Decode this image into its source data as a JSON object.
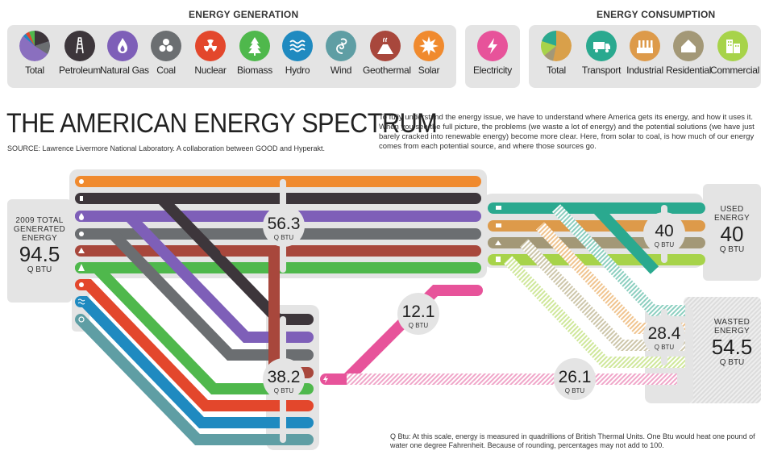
{
  "generation_panel": {
    "title": "ENERGY GENERATION",
    "items": [
      {
        "label": "Total",
        "icon": "pie-chart-icon",
        "color": "#8a6fbf"
      },
      {
        "label": "Petroleum",
        "icon": "oil-derrick-icon",
        "color": "#3d363b"
      },
      {
        "label": "Natural Gas",
        "icon": "gas-flame-icon",
        "color": "#7e5fb8"
      },
      {
        "label": "Coal",
        "icon": "coal-icon",
        "color": "#6b6e71"
      },
      {
        "label": "Nuclear",
        "icon": "radiation-icon",
        "color": "#e3472c"
      },
      {
        "label": "Biomass",
        "icon": "tree-icon",
        "color": "#4fb84c"
      },
      {
        "label": "Hydro",
        "icon": "waves-icon",
        "color": "#1f8ac0"
      },
      {
        "label": "Wind",
        "icon": "wind-swirl-icon",
        "color": "#5f9ea4"
      },
      {
        "label": "Geothermal",
        "icon": "volcano-icon",
        "color": "#a8473c"
      },
      {
        "label": "Solar",
        "icon": "sun-icon",
        "color": "#f08a2e"
      }
    ]
  },
  "electricity_panel": {
    "items": [
      {
        "label": "Electricity",
        "icon": "lightning-icon",
        "color": "#e7539a"
      }
    ]
  },
  "consumption_panel": {
    "title": "ENERGY CONSUMPTION",
    "items": [
      {
        "label": "Total",
        "icon": "pie-chart-icon",
        "color": "#d9a04a"
      },
      {
        "label": "Transport",
        "icon": "truck-icon",
        "color": "#2aa98f"
      },
      {
        "label": "Industrial",
        "icon": "factory-icon",
        "color": "#dd9a4a"
      },
      {
        "label": "Residential",
        "icon": "house-icon",
        "color": "#a39877"
      },
      {
        "label": "Commercial",
        "icon": "office-building-icon",
        "color": "#a7d34a"
      }
    ]
  },
  "title": "THE AMERICAN ENERGY SPECTRUM",
  "source": "SOURCE: Lawrence Livermore National Laboratory. A collaboration between GOOD and Hyperakt.",
  "intro": "To fully understand the energy issue, we have to understand where America gets its energy, and how it uses it. When you see the full picture, the problems (we waste a lot of energy) and the potential solutions (we have just barely cracked into renewable energy) become more clear. Here, from solar to coal, is how much of our energy comes from each potential source, and where those sources go.",
  "total_generated": {
    "label_line1": "2009 TOTAL",
    "label_line2": "GENERATED",
    "label_line3": "ENERGY",
    "value": "94.5",
    "unit": "Q BTU"
  },
  "used": {
    "label_line1": "USED",
    "label_line2": "ENERGY",
    "value": "40",
    "unit": "Q BTU"
  },
  "wasted": {
    "label_line1": "WASTED",
    "label_line2": "ENERGY",
    "value": "54.5",
    "unit": "Q BTU"
  },
  "bubbles": [
    {
      "value": "56.3",
      "unit": "Q BTU"
    },
    {
      "value": "38.2",
      "unit": "Q BTU"
    },
    {
      "value": "12.1",
      "unit": "Q BTU"
    },
    {
      "value": "26.1",
      "unit": "Q BTU"
    },
    {
      "value": "40",
      "unit": "Q BTU"
    },
    {
      "value": "28.4",
      "unit": "Q BTU"
    }
  ],
  "footnote": "Q Btu: At this scale, energy is measured in quadrillions of British Thermal Units. One Btu would heat one pound of water one degree Fahrenheit. Because of rounding, percentages may not add to 100.",
  "colors": {
    "solar": "#f08a2e",
    "petroleum": "#3d363b",
    "natural_gas": "#7e5fb8",
    "coal": "#6b6e71",
    "geothermal": "#a8473c",
    "biomass": "#4fb84c",
    "nuclear": "#e3472c",
    "hydro": "#1f8ac0",
    "wind": "#5f9ea4",
    "electricity": "#e7539a",
    "transport": "#2aa98f",
    "industrial": "#dd9a4a",
    "residential": "#a39877",
    "commercial": "#a7d34a",
    "panel": "#e4e4e4"
  }
}
